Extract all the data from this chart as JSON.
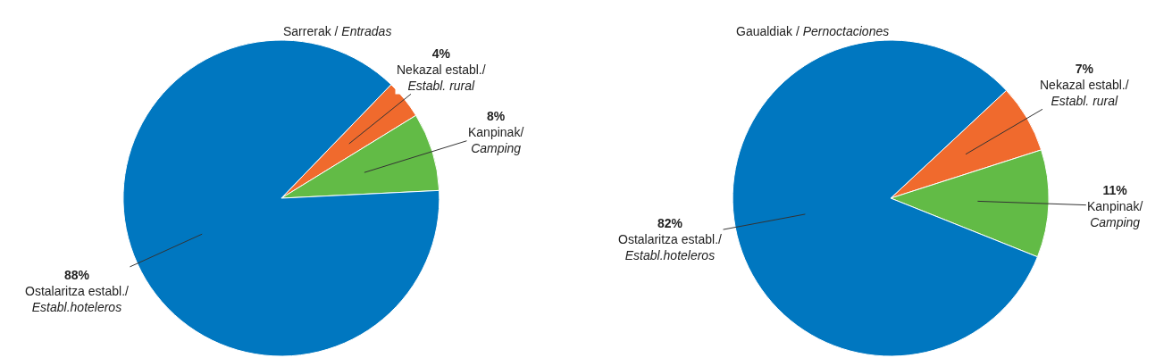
{
  "chart_data": [
    {
      "type": "pie",
      "title": "Sarrerak / Entradas",
      "categories": [
        "Nekazal establ./Establ. rural",
        "Kanpinak/Camping",
        "Ostalaritza establ./Establ.hoteleros"
      ],
      "values": [
        4,
        8,
        88
      ],
      "value_labels": [
        "4%",
        "8%",
        "88%"
      ],
      "colors": [
        "#f06a2d",
        "#62bb46",
        "#0077c0"
      ],
      "legend": false
    },
    {
      "type": "pie",
      "title": "Gaualdiak / Pernoctaciones",
      "categories": [
        "Nekazal establ./Establ. rural",
        "Kanpinak/Camping",
        "Ostalaritza establ./Establ.hoteleros"
      ],
      "values": [
        7,
        11,
        82
      ],
      "value_labels": [
        "7%",
        "11%",
        "82%"
      ],
      "colors": [
        "#f06a2d",
        "#62bb46",
        "#0077c0"
      ],
      "legend": false
    }
  ]
}
